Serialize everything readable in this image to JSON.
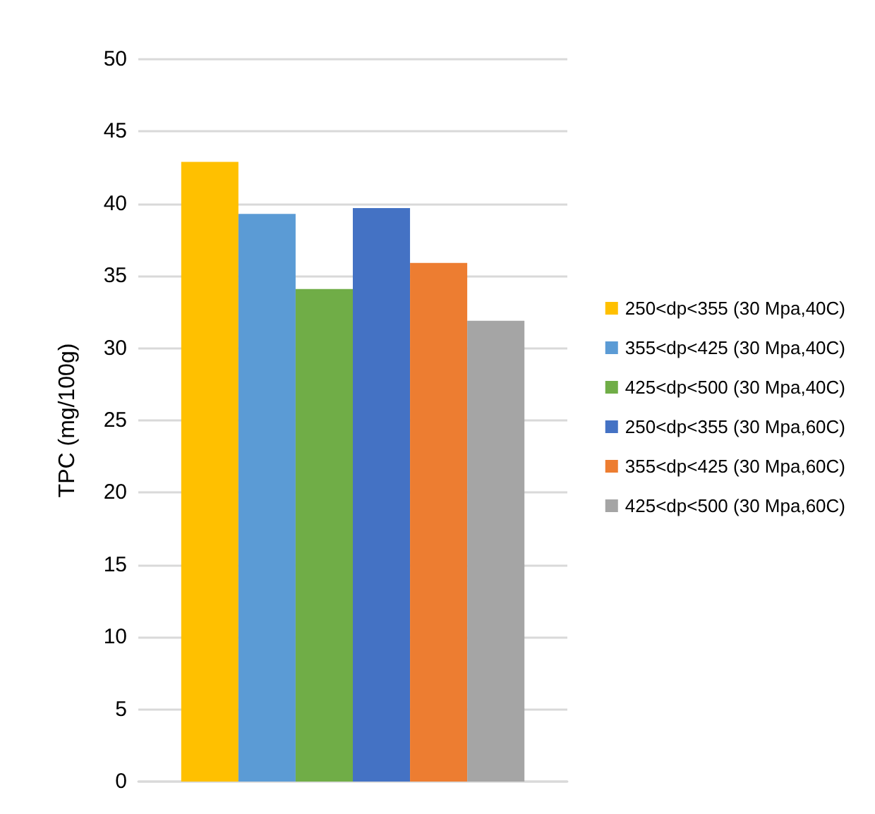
{
  "chart_data": {
    "type": "bar",
    "ylabel": "TPC (mg/100g)",
    "categories": [
      null
    ],
    "series": [
      {
        "name": "250<dp<355 (30 Mpa,40C)",
        "color": "#ffc000",
        "values": [
          42.9
        ]
      },
      {
        "name": "355<dp<425 (30 Mpa,40C)",
        "color": "#5b9bd5",
        "values": [
          39.3
        ]
      },
      {
        "name": "425<dp<500 (30 Mpa,40C)",
        "color": "#70ad47",
        "values": [
          34.1
        ]
      },
      {
        "name": "250<dp<355 (30 Mpa,60C)",
        "color": "#4472c4",
        "values": [
          39.7
        ]
      },
      {
        "name": "355<dp<425 (30 Mpa,60C)",
        "color": "#ed7d31",
        "values": [
          35.9
        ]
      },
      {
        "name": "425<dp<500 (30 Mpa,60C)",
        "color": "#a5a5a5",
        "values": [
          31.9
        ]
      }
    ],
    "ylim": [
      0,
      50
    ],
    "yticks": [
      0,
      5,
      10,
      15,
      20,
      25,
      30,
      35,
      40,
      45,
      50
    ],
    "grid": "y",
    "legend": "right"
  }
}
